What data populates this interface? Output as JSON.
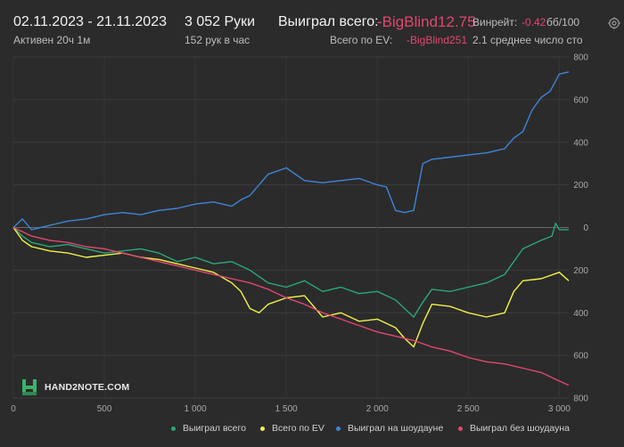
{
  "header": {
    "date_range": "02.11.2023 - 21.11.2023",
    "active": "Активен 20ч 1м",
    "hands": "3 052 Руки",
    "hands_per_hour": "152 рук в час",
    "won_label": "Выиграл всего:",
    "won_value": "-BigBlind12.75",
    "ev_label": "Всего по EV:",
    "ev_value": "-BigBlind251",
    "winrate_label": "Винрейт:",
    "winrate_value": "-0.42",
    "winrate_unit": "бб/100",
    "avg_players": "2.1 среднее число сто"
  },
  "logo_text": "HAND2NOTE.COM",
  "colors": {
    "background": "#2b2b2b",
    "won": "#2aa876",
    "ev": "#f2f24a",
    "showdown": "#3d85d6",
    "nonshowdown": "#e2476f",
    "negative_text": "#e2476f"
  },
  "chart_data": {
    "type": "line",
    "xlim": [
      0,
      3052
    ],
    "ylim": [
      -800,
      800
    ],
    "x_ticks": [
      0,
      500,
      1000,
      1500,
      2000,
      2500,
      3000
    ],
    "x_tick_labels": [
      "0",
      "500",
      "1 000",
      "1 500",
      "2 000",
      "2 500",
      "3 000"
    ],
    "y_ticks": [
      800,
      600,
      400,
      200,
      0,
      -200,
      -400,
      -600,
      -800
    ],
    "y_tick_labels": [
      "800",
      "600",
      "400",
      "200",
      "0",
      "200",
      "400",
      "600",
      "800"
    ],
    "grid": true,
    "legend_position": "bottom",
    "series": [
      {
        "name": "Выиграл всего",
        "color": "#2aa876",
        "x": [
          0,
          50,
          100,
          200,
          300,
          400,
          500,
          600,
          700,
          800,
          900,
          1000,
          1100,
          1200,
          1250,
          1300,
          1350,
          1400,
          1500,
          1600,
          1700,
          1800,
          1900,
          2000,
          2100,
          2150,
          2200,
          2250,
          2300,
          2400,
          2500,
          2600,
          2700,
          2750,
          2800,
          2900,
          2960,
          2980,
          3000,
          3052
        ],
        "y": [
          0,
          -40,
          -70,
          -90,
          -80,
          -100,
          -120,
          -110,
          -100,
          -120,
          -160,
          -140,
          -170,
          -160,
          -180,
          -200,
          -230,
          -260,
          -280,
          -250,
          -300,
          -280,
          -310,
          -300,
          -340,
          -380,
          -420,
          -350,
          -290,
          -300,
          -280,
          -260,
          -220,
          -160,
          -100,
          -60,
          -40,
          20,
          -10,
          -10
        ]
      },
      {
        "name": "Всего по EV",
        "color": "#f2f24a",
        "x": [
          0,
          50,
          100,
          200,
          300,
          400,
          500,
          600,
          700,
          800,
          900,
          1000,
          1100,
          1200,
          1250,
          1300,
          1350,
          1400,
          1500,
          1600,
          1700,
          1800,
          1900,
          2000,
          2100,
          2150,
          2200,
          2250,
          2300,
          2400,
          2500,
          2600,
          2700,
          2750,
          2800,
          2900,
          3000,
          3052
        ],
        "y": [
          0,
          -60,
          -90,
          -110,
          -120,
          -140,
          -130,
          -120,
          -140,
          -150,
          -170,
          -190,
          -210,
          -260,
          -300,
          -380,
          -400,
          -360,
          -330,
          -320,
          -420,
          -400,
          -440,
          -430,
          -470,
          -520,
          -560,
          -450,
          -360,
          -370,
          -400,
          -420,
          -400,
          -300,
          -250,
          -240,
          -210,
          -250
        ]
      },
      {
        "name": "Выиграл на шоудауне",
        "color": "#3d85d6",
        "x": [
          0,
          50,
          100,
          200,
          300,
          400,
          500,
          600,
          700,
          800,
          900,
          1000,
          1100,
          1200,
          1250,
          1300,
          1350,
          1400,
          1500,
          1600,
          1700,
          1800,
          1900,
          2000,
          2050,
          2100,
          2150,
          2200,
          2250,
          2300,
          2400,
          2500,
          2600,
          2700,
          2750,
          2800,
          2850,
          2900,
          2950,
          3000,
          3052
        ],
        "y": [
          0,
          40,
          -10,
          10,
          30,
          40,
          60,
          70,
          60,
          80,
          90,
          110,
          120,
          100,
          130,
          150,
          200,
          250,
          280,
          220,
          210,
          220,
          230,
          200,
          190,
          80,
          70,
          80,
          300,
          320,
          330,
          340,
          350,
          370,
          420,
          450,
          550,
          610,
          640,
          720,
          730
        ]
      },
      {
        "name": "Выиграл без шоудауна",
        "color": "#e2476f",
        "x": [
          0,
          50,
          100,
          200,
          300,
          400,
          500,
          600,
          700,
          800,
          900,
          1000,
          1100,
          1200,
          1300,
          1400,
          1500,
          1600,
          1700,
          1800,
          1900,
          2000,
          2100,
          2200,
          2300,
          2400,
          2500,
          2600,
          2700,
          2800,
          2900,
          3000,
          3052
        ],
        "y": [
          0,
          -20,
          -40,
          -60,
          -70,
          -90,
          -100,
          -120,
          -140,
          -160,
          -180,
          -200,
          -220,
          -240,
          -260,
          -290,
          -330,
          -360,
          -400,
          -430,
          -460,
          -490,
          -510,
          -530,
          -560,
          -580,
          -610,
          -630,
          -640,
          -660,
          -680,
          -720,
          -740
        ]
      }
    ]
  },
  "legend": [
    {
      "label": "Выиграл всего",
      "color": "#2aa876"
    },
    {
      "label": "Всего по EV",
      "color": "#f2f24a"
    },
    {
      "label": "Выиграл на шоудауне",
      "color": "#3d85d6"
    },
    {
      "label": "Выиграл без шоудауна",
      "color": "#e2476f"
    }
  ]
}
